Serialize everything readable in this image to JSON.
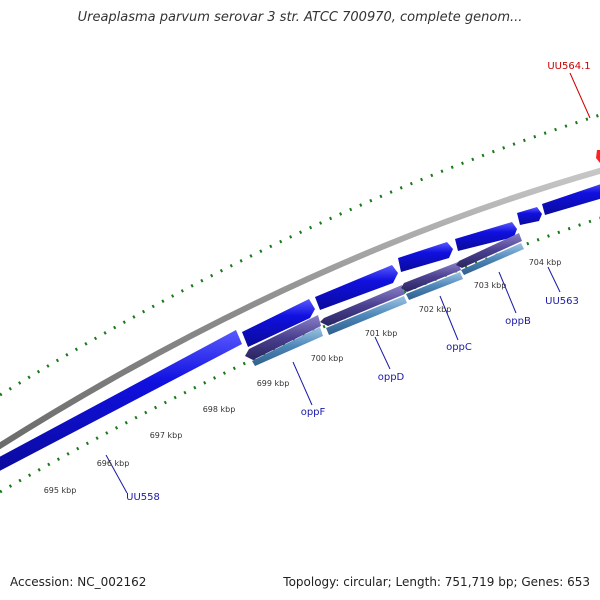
{
  "title": "Ureaplasma parvum serovar 3 str. ATCC 700970, complete genom...",
  "footer": {
    "accession": "Accession: NC_002162",
    "summary": "Topology: circular; Length: 751,719 bp; Genes: 653"
  },
  "ticks": [
    "695 kbp",
    "696 kbp",
    "697 kbp",
    "698 kbp",
    "699 kbp",
    "700 kbp",
    "701 kbp",
    "702 kbp",
    "703 kbp",
    "704 kbp"
  ],
  "genes": [
    {
      "name": "UU558",
      "color": "blue"
    },
    {
      "name": "oppF",
      "color": "blue"
    },
    {
      "name": "oppD",
      "color": "blue"
    },
    {
      "name": "oppC",
      "color": "blue"
    },
    {
      "name": "oppB",
      "color": "blue"
    },
    {
      "name": "UU563",
      "color": "blue"
    },
    {
      "name": "UU564.1",
      "color": "red"
    }
  ],
  "colors": {
    "backbone": "#8c8c8c",
    "forward_gene": "#1010e0",
    "reverse_gene_dark": "#4a4090",
    "reverse_gene_light": "#4d86b8",
    "tick": "#1a7a1a",
    "label_blue": "#1a1aaa",
    "label_red": "#cc0000",
    "rna_marker": "#ff2020"
  }
}
